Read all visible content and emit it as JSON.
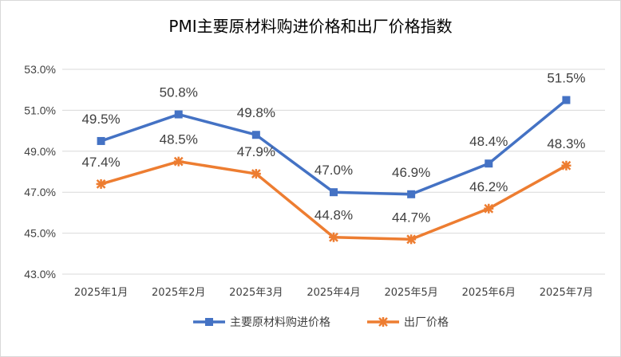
{
  "chart_data": {
    "type": "line",
    "title": "PMI主要原材料购进价格和出厂价格指数",
    "categories": [
      "2025年1月",
      "2025年2月",
      "2025年3月",
      "2025年4月",
      "2025年5月",
      "2025年6月",
      "2025年7月"
    ],
    "series": [
      {
        "name": "主要原材料购进价格",
        "color": "#4472c4",
        "marker": "square",
        "values": [
          49.5,
          50.8,
          49.8,
          47.0,
          46.9,
          48.4,
          51.5
        ],
        "labels": [
          "49.5%",
          "50.8%",
          "49.8%",
          "47.0%",
          "46.9%",
          "48.4%",
          "51.5%"
        ]
      },
      {
        "name": "出厂价格",
        "color": "#ed7d31",
        "marker": "star",
        "values": [
          47.4,
          48.5,
          47.9,
          44.8,
          44.7,
          46.2,
          48.3
        ],
        "labels": [
          "47.4%",
          "48.5%",
          "47.9%",
          "44.8%",
          "44.7%",
          "46.2%",
          "48.3%"
        ]
      }
    ],
    "ylim": [
      43.0,
      53.0
    ],
    "yticks": [
      "43.0%",
      "45.0%",
      "47.0%",
      "49.0%",
      "51.0%",
      "53.0%"
    ],
    "ytick_values": [
      43,
      45,
      47,
      49,
      51,
      53
    ],
    "grid": true,
    "legend_position": "bottom",
    "xlabel": "",
    "ylabel": ""
  }
}
